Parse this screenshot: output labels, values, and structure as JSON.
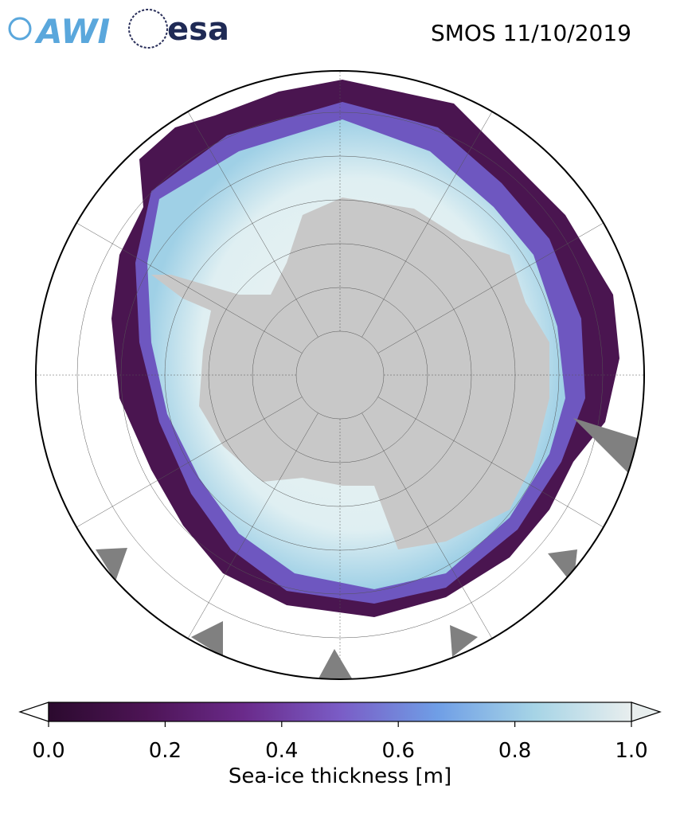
{
  "header": {
    "logos": [
      "AWI",
      "esa"
    ],
    "title": "SMOS 11/10/2019"
  },
  "colorbar": {
    "label": "Sea-ice thickness [m]",
    "lim": [
      0,
      1
    ],
    "colors": [
      "#2b0a2e",
      "#4d1455",
      "#6a2a8a",
      "#7a5cc6",
      "#6f9ee6",
      "#a6d4e6",
      "#e8eeee"
    ],
    "ticks": [
      {
        "value": 0,
        "label": "0.0"
      },
      {
        "value": 0.2,
        "label": "0.2"
      },
      {
        "value": 0.4,
        "label": "0.4"
      },
      {
        "value": 0.6,
        "label": "0.6"
      },
      {
        "value": 0.8,
        "label": "0.8"
      },
      {
        "value": 1,
        "label": "1.0"
      }
    ]
  }
}
